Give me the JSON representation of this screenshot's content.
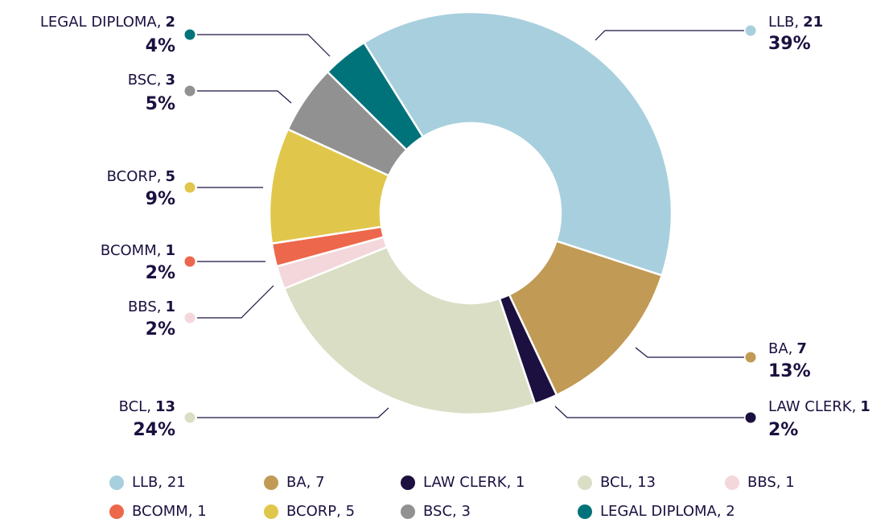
{
  "chart_data": {
    "type": "donut",
    "categories": [
      "LLB",
      "BA",
      "LAW CLERK",
      "BCL",
      "BBS",
      "BCOMM",
      "BCORP",
      "BSC",
      "LEGAL DIPLOMA"
    ],
    "values": [
      21,
      7,
      1,
      13,
      1,
      1,
      5,
      3,
      2
    ],
    "callout_labels": [
      "LLB,",
      "BA,",
      "LAW CLERK,",
      "BCL,",
      "BBS,",
      "BCOMM,",
      "BCORP,",
      "BSC,",
      "LEGAL DIPLOMA,"
    ],
    "percent_labels": [
      "39%",
      "13%",
      "2%",
      "24%",
      "2%",
      "2%",
      "9%",
      "5%",
      "4%"
    ],
    "legend_labels": [
      "LLB, 21",
      "BA, 7",
      "LAW CLERK, 1",
      "BCL, 13",
      "BBS, 1",
      "BCOMM, 1",
      "BCORP, 5",
      "BSC, 3",
      "LEGAL DIPLOMA, 2"
    ],
    "colors": [
      "#a8cfdd",
      "#c19a55",
      "#1c1040",
      "#dadec5",
      "#f3d7db",
      "#ec674b",
      "#e0c74b",
      "#919191",
      "#00737a"
    ]
  }
}
